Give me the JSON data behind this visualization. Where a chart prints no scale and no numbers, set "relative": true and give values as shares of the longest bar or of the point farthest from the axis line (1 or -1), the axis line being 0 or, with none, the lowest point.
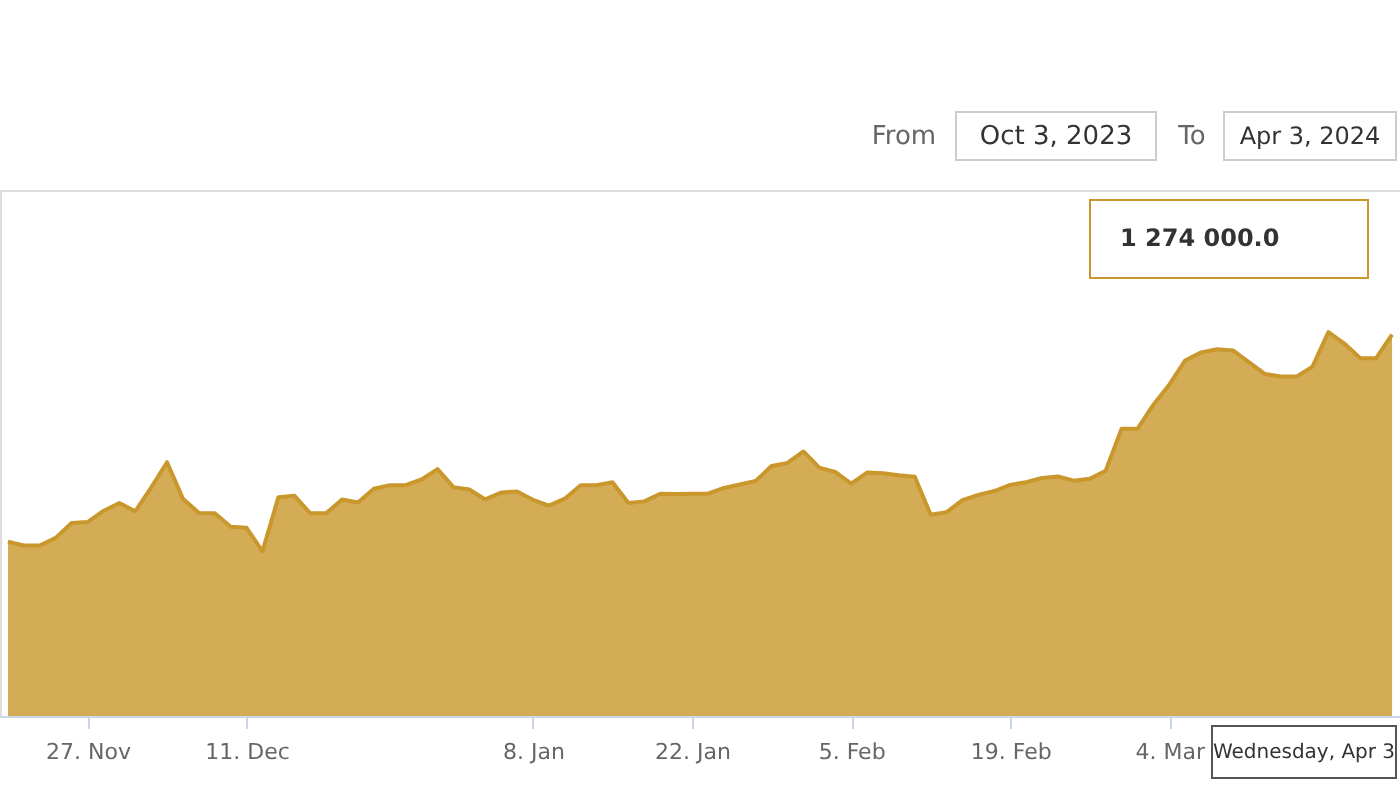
{
  "chart_data": {
    "type": "area",
    "relative": true,
    "categories": [
      null,
      null,
      null,
      null,
      null,
      "27. Nov",
      null,
      null,
      null,
      null,
      null,
      null,
      null,
      null,
      null,
      "11. Dec",
      null,
      null,
      null,
      null,
      null,
      null,
      null,
      null,
      null,
      null,
      null,
      null,
      null,
      null,
      null,
      null,
      null,
      "8. Jan",
      null,
      null,
      null,
      null,
      null,
      null,
      null,
      null,
      null,
      "22. Jan",
      null,
      null,
      null,
      null,
      null,
      null,
      null,
      null,
      null,
      "5. Feb",
      null,
      null,
      null,
      null,
      null,
      null,
      null,
      null,
      null,
      "19. Feb",
      null,
      null,
      null,
      null,
      null,
      null,
      null,
      null,
      null,
      "4. Mar",
      null,
      null,
      null,
      null,
      null,
      null,
      null,
      null,
      null,
      null,
      null,
      null,
      null,
      null
    ],
    "series": [
      {
        "color": "#c9972c",
        "values": [
          0.454,
          0.444,
          0.444,
          0.464,
          0.503,
          0.505,
          0.534,
          0.555,
          0.533,
          0.595,
          0.661,
          0.566,
          0.529,
          0.528,
          0.493,
          0.49,
          0.429,
          0.57,
          0.574,
          0.528,
          0.528,
          0.564,
          0.556,
          0.592,
          0.601,
          0.601,
          0.616,
          0.643,
          0.596,
          0.59,
          0.564,
          0.582,
          0.585,
          0.563,
          0.548,
          0.566,
          0.601,
          0.601,
          0.609,
          0.555,
          0.559,
          0.579,
          0.578,
          0.579,
          0.579,
          0.594,
          0.603,
          0.612,
          0.651,
          0.659,
          0.689,
          0.647,
          0.636,
          0.605,
          0.634,
          0.632,
          0.627,
          0.623,
          0.524,
          0.531,
          0.562,
          0.576,
          0.586,
          0.602,
          0.609,
          0.62,
          0.624,
          0.613,
          0.618,
          0.639,
          0.748,
          0.748,
          0.811,
          0.863,
          0.926,
          0.947,
          0.955,
          0.952,
          0.922,
          0.891,
          0.884,
          0.884,
          0.91,
          1,
          0.97,
          0.932,
          0.932,
          0.993
        ]
      }
    ],
    "annotations": [
      "From",
      "Oct 3, 2023",
      "To",
      "Apr 3, 2024",
      "1 274 000.0",
      "Wednesday, Apr 3"
    ]
  }
}
